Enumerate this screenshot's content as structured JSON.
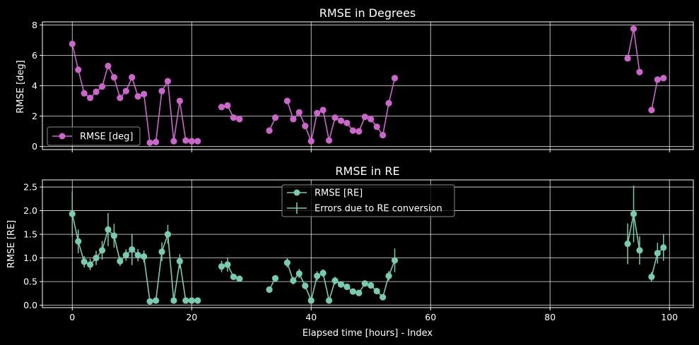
{
  "chart_data": [
    {
      "type": "line",
      "title": "RMSE in Degrees",
      "xlabel": "",
      "ylabel": "RMSE [deg]",
      "xlim": [
        -5,
        104
      ],
      "ylim": [
        -0.2,
        8.2
      ],
      "yticks": [
        0,
        2,
        4,
        6,
        8
      ],
      "xticks": [
        0,
        20,
        40,
        60,
        80,
        100
      ],
      "show_xtick_labels": false,
      "grid": true,
      "legend_position": "lower-left",
      "series": [
        {
          "name": "RMSE [deg]",
          "color": "#cc66cc",
          "marker": "circle",
          "error_bars": false,
          "points": [
            [
              0,
              6.75
            ],
            [
              1,
              5.05
            ],
            [
              2,
              3.5
            ],
            [
              3,
              3.2
            ],
            [
              4,
              3.6
            ],
            [
              5,
              3.95
            ],
            [
              6,
              5.3
            ],
            [
              7,
              4.55
            ],
            [
              8,
              3.2
            ],
            [
              9,
              3.65
            ],
            [
              10,
              4.55
            ],
            [
              11,
              3.3
            ],
            [
              12,
              3.45
            ],
            [
              13,
              0.25
            ],
            [
              14,
              0.3
            ],
            [
              15,
              3.65
            ],
            [
              16,
              4.3
            ],
            [
              17,
              0.35
            ],
            [
              18,
              3.0
            ],
            [
              19,
              0.4
            ],
            [
              20,
              0.35
            ],
            [
              21,
              0.35
            ],
            [
              null,
              null
            ],
            [
              25,
              2.6
            ],
            [
              26,
              2.7
            ],
            [
              27,
              1.9
            ],
            [
              28,
              1.8
            ],
            [
              null,
              null
            ],
            [
              33,
              1.05
            ],
            [
              34,
              1.9
            ],
            [
              null,
              null
            ],
            [
              36,
              3.0
            ],
            [
              37,
              1.8
            ],
            [
              38,
              2.25
            ],
            [
              39,
              1.35
            ],
            [
              40,
              0.35
            ],
            [
              41,
              2.2
            ],
            [
              42,
              2.4
            ],
            [
              43,
              0.4
            ],
            [
              44,
              1.9
            ],
            [
              45,
              1.7
            ],
            [
              46,
              1.55
            ],
            [
              47,
              1.05
            ],
            [
              48,
              1.0
            ],
            [
              49,
              1.95
            ],
            [
              50,
              1.8
            ],
            [
              51,
              1.3
            ],
            [
              52,
              0.75
            ],
            [
              53,
              2.85
            ],
            [
              54,
              4.5
            ],
            [
              null,
              null
            ],
            [
              93,
              5.8
            ],
            [
              94,
              7.75
            ],
            [
              95,
              4.9
            ],
            [
              null,
              null
            ],
            [
              97,
              2.4
            ],
            [
              98,
              4.4
            ],
            [
              99,
              4.5
            ]
          ]
        }
      ]
    },
    {
      "type": "line",
      "title": "RMSE in RE",
      "xlabel": "Elapsed time [hours] - Index",
      "ylabel": "RMSE [RE]",
      "xlim": [
        -5,
        104
      ],
      "ylim": [
        -0.05,
        2.65
      ],
      "yticks": [
        0.0,
        0.5,
        1.0,
        1.5,
        2.0,
        2.5
      ],
      "ytick_labels": [
        "0.0",
        "0.5",
        "1.0",
        "1.5",
        "2.0",
        "2.5"
      ],
      "xticks": [
        0,
        20,
        40,
        60,
        80,
        100
      ],
      "xtick_labels": [
        "0",
        "20",
        "40",
        "60",
        "80",
        "100"
      ],
      "show_xtick_labels": true,
      "grid": true,
      "legend_position": "upper-center",
      "series": [
        {
          "name": "RMSE [RE]",
          "color": "#77cbb0",
          "marker": "circle",
          "error_bars": false,
          "points": [
            [
              0,
              1.93
            ],
            [
              1,
              1.35
            ],
            [
              2,
              0.92
            ],
            [
              3,
              0.86
            ],
            [
              4,
              1.0
            ],
            [
              5,
              1.16
            ],
            [
              6,
              1.6
            ],
            [
              7,
              1.47
            ],
            [
              8,
              0.93
            ],
            [
              9,
              1.06
            ],
            [
              10,
              1.18
            ],
            [
              11,
              1.06
            ],
            [
              12,
              1.03
            ],
            [
              13,
              0.08
            ],
            [
              14,
              0.1
            ],
            [
              15,
              1.13
            ],
            [
              16,
              1.5
            ],
            [
              17,
              0.1
            ],
            [
              18,
              0.93
            ],
            [
              19,
              0.1
            ],
            [
              20,
              0.1
            ],
            [
              21,
              0.1
            ],
            [
              null,
              null
            ],
            [
              25,
              0.82
            ],
            [
              26,
              0.86
            ],
            [
              27,
              0.6
            ],
            [
              28,
              0.56
            ],
            [
              null,
              null
            ],
            [
              33,
              0.33
            ],
            [
              34,
              0.57
            ],
            [
              null,
              null
            ],
            [
              36,
              0.9
            ],
            [
              37,
              0.52
            ],
            [
              38,
              0.67
            ],
            [
              39,
              0.41
            ],
            [
              40,
              0.1
            ],
            [
              41,
              0.62
            ],
            [
              42,
              0.68
            ],
            [
              43,
              0.1
            ],
            [
              44,
              0.52
            ],
            [
              45,
              0.44
            ],
            [
              46,
              0.39
            ],
            [
              47,
              0.29
            ],
            [
              48,
              0.26
            ],
            [
              49,
              0.46
            ],
            [
              50,
              0.42
            ],
            [
              51,
              0.3
            ],
            [
              52,
              0.17
            ],
            [
              53,
              0.62
            ],
            [
              54,
              0.95
            ],
            [
              null,
              null
            ],
            [
              93,
              1.3
            ],
            [
              94,
              1.93
            ],
            [
              95,
              1.16
            ],
            [
              null,
              null
            ],
            [
              97,
              0.6
            ],
            [
              98,
              1.1
            ],
            [
              99,
              1.22
            ]
          ]
        },
        {
          "name": "Errors due to RE conversion",
          "color": "#77cbb0",
          "marker": "errorbar",
          "error_bars": true,
          "points": [
            [
              0,
              1.93,
              0.48
            ],
            [
              1,
              1.35,
              0.25
            ],
            [
              2,
              0.92,
              0.12
            ],
            [
              3,
              0.86,
              0.12
            ],
            [
              4,
              1.0,
              0.15
            ],
            [
              5,
              1.16,
              0.2
            ],
            [
              6,
              1.6,
              0.35
            ],
            [
              7,
              1.47,
              0.25
            ],
            [
              8,
              0.93,
              0.1
            ],
            [
              9,
              1.06,
              0.12
            ],
            [
              10,
              1.18,
              0.33
            ],
            [
              11,
              1.06,
              0.13
            ],
            [
              12,
              1.03,
              0.13
            ],
            [
              13,
              0.08,
              0.02
            ],
            [
              14,
              0.1,
              0.02
            ],
            [
              15,
              1.13,
              0.2
            ],
            [
              16,
              1.5,
              0.2
            ],
            [
              17,
              0.1,
              0.02
            ],
            [
              18,
              0.93,
              0.15
            ],
            [
              19,
              0.1,
              0.02
            ],
            [
              20,
              0.1,
              0.02
            ],
            [
              21,
              0.1,
              0.02
            ],
            [
              25,
              0.82,
              0.12
            ],
            [
              26,
              0.86,
              0.15
            ],
            [
              27,
              0.6,
              0.05
            ],
            [
              28,
              0.56,
              0.03
            ],
            [
              33,
              0.33,
              0.06
            ],
            [
              34,
              0.57,
              0.05
            ],
            [
              36,
              0.9,
              0.1
            ],
            [
              37,
              0.52,
              0.08
            ],
            [
              38,
              0.67,
              0.1
            ],
            [
              39,
              0.41,
              0.07
            ],
            [
              40,
              0.1,
              0.02
            ],
            [
              41,
              0.62,
              0.1
            ],
            [
              42,
              0.68,
              0.08
            ],
            [
              43,
              0.1,
              0.02
            ],
            [
              44,
              0.52,
              0.08
            ],
            [
              45,
              0.44,
              0.05
            ],
            [
              46,
              0.39,
              0.05
            ],
            [
              47,
              0.29,
              0.04
            ],
            [
              48,
              0.26,
              0.04
            ],
            [
              49,
              0.46,
              0.06
            ],
            [
              50,
              0.42,
              0.06
            ],
            [
              51,
              0.3,
              0.05
            ],
            [
              52,
              0.17,
              0.03
            ],
            [
              53,
              0.62,
              0.1
            ],
            [
              54,
              0.95,
              0.25
            ],
            [
              93,
              1.3,
              0.43
            ],
            [
              94,
              1.93,
              0.6
            ],
            [
              95,
              1.16,
              0.3
            ],
            [
              97,
              0.6,
              0.1
            ],
            [
              98,
              1.1,
              0.22
            ],
            [
              99,
              1.22,
              0.28
            ]
          ]
        }
      ]
    }
  ]
}
